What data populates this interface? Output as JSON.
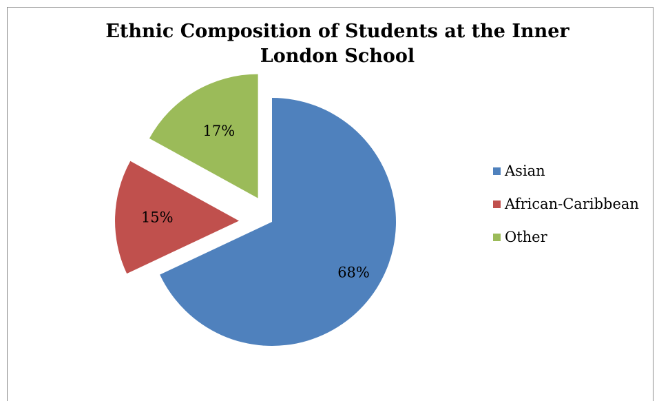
{
  "chart_data": {
    "type": "pie",
    "title": "Ethnic Composition of Students at the Inner London School",
    "title_lines": [
      "Ethnic Composition of Students at the Inner",
      "London School"
    ],
    "legend_position": "right",
    "slices": [
      {
        "label": "Asian",
        "value": 68,
        "display": "68%",
        "color": "#4F81BD"
      },
      {
        "label": "African-Caribbean",
        "value": 15,
        "display": "15%",
        "color": "#C0504D"
      },
      {
        "label": "Other",
        "value": 17,
        "display": "17%",
        "color": "#9BBB59"
      }
    ]
  }
}
